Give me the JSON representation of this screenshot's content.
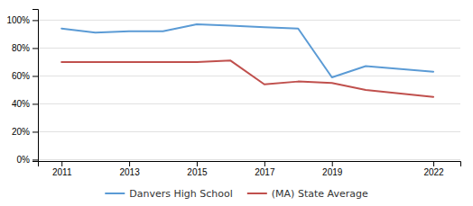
{
  "chart_data": {
    "type": "line",
    "x": [
      2011,
      2012,
      2013,
      2014,
      2015,
      2016,
      2017,
      2018,
      2019,
      2020,
      2022
    ],
    "series": [
      {
        "name": "Danvers High School",
        "color": "#5b9bd5",
        "values": [
          0.94,
          0.91,
          0.92,
          0.92,
          0.97,
          0.96,
          0.95,
          0.94,
          0.59,
          0.67,
          0.63
        ]
      },
      {
        "name": "(MA) State Average",
        "color": "#c0504d",
        "values": [
          0.7,
          0.7,
          0.7,
          0.7,
          0.7,
          0.71,
          0.54,
          0.56,
          0.55,
          0.5,
          0.45
        ]
      }
    ],
    "xlim": [
      2010.3,
      2022.8
    ],
    "xticks": [
      2011,
      2013,
      2015,
      2017,
      2019,
      2022
    ],
    "ylim": [
      -0.01,
      1.08
    ],
    "yticks": [
      {
        "value": 0.0,
        "label": "0%"
      },
      {
        "value": 0.2,
        "label": "20%"
      },
      {
        "value": 0.4,
        "label": "40%"
      },
      {
        "value": 0.6,
        "label": "60%"
      },
      {
        "value": 0.8,
        "label": "80%"
      },
      {
        "value": 1.0,
        "label": "100%"
      }
    ],
    "grid": true,
    "legend": "bottom"
  }
}
